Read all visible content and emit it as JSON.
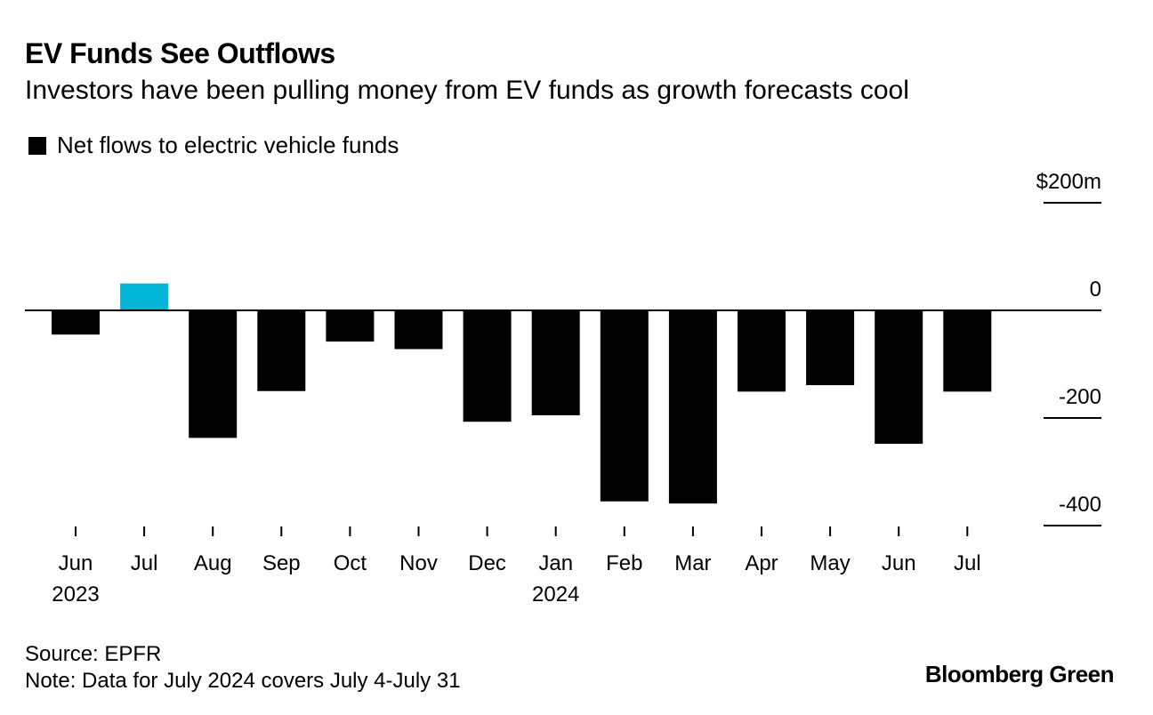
{
  "chart_data": {
    "type": "bar",
    "title": "EV Funds See Outflows",
    "subtitle": "Investors have been pulling money from EV funds as growth forecasts cool",
    "legend": [
      {
        "label": "Net flows to electric vehicle funds",
        "color": "#000000"
      }
    ],
    "categories": [
      "Jun",
      "Jul",
      "Aug",
      "Sep",
      "Oct",
      "Nov",
      "Dec",
      "Jan",
      "Feb",
      "Mar",
      "Apr",
      "May",
      "Jun",
      "Jul"
    ],
    "year_labels": [
      {
        "index": 0,
        "label": "2023"
      },
      {
        "index": 7,
        "label": "2024"
      }
    ],
    "series": [
      {
        "name": "Net flows to electric vehicle funds",
        "values": [
          -45,
          50,
          -237,
          -150,
          -58,
          -72,
          -207,
          -195,
          -355,
          -359,
          -151,
          -139,
          -248,
          -151
        ]
      }
    ],
    "highlight": {
      "index": 1,
      "color": "#00b5d6"
    },
    "bar_color": "#000000",
    "yticks": [
      200,
      0,
      -200,
      -400
    ],
    "ytick_labels": [
      "$200m",
      "0",
      "-200",
      "-400"
    ],
    "ylim": [
      -400,
      200
    ],
    "unit": "$m",
    "source": "Source: EPFR",
    "note": "Note: Data for July 2024 covers July 4-July 31",
    "brand": "Bloomberg Green"
  }
}
